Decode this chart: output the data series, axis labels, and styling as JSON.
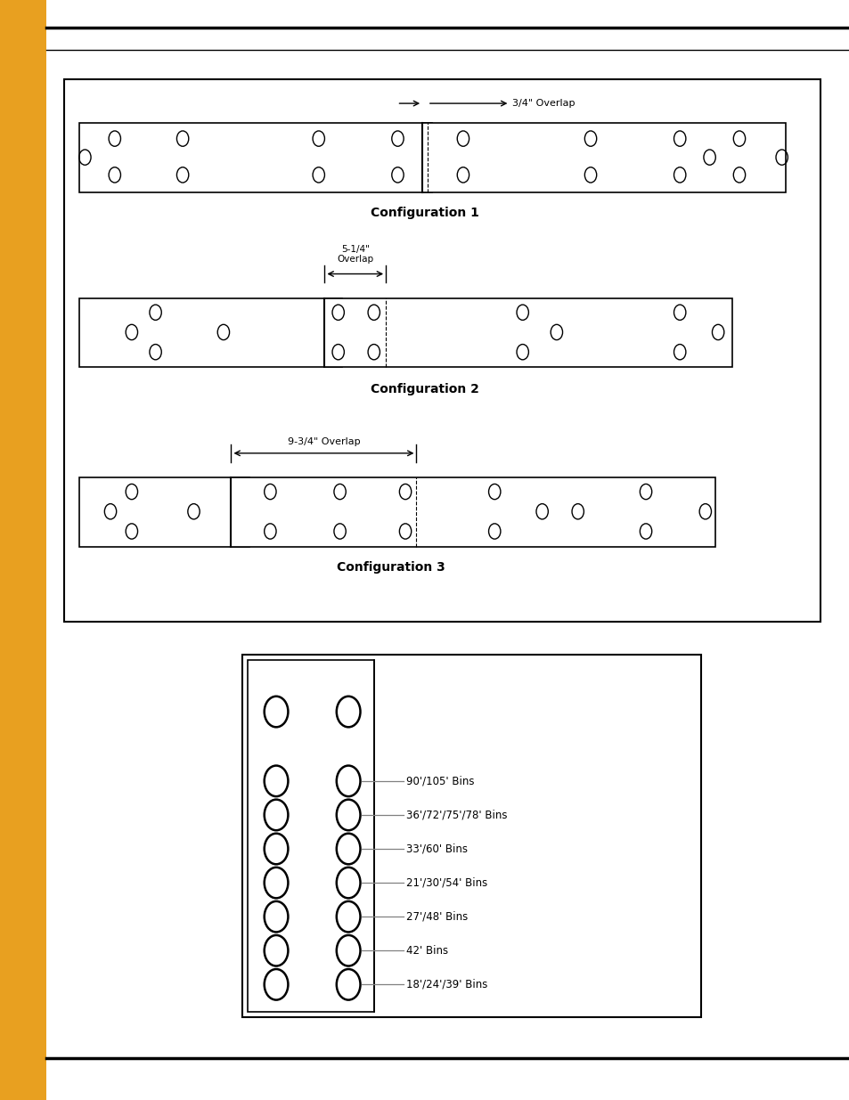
{
  "bg_color": "#ffffff",
  "sidebar_color": "#E8A020",
  "legend_entries": [
    "90'/105' Bins",
    "36'/72'/75'/78' Bins",
    "33'/60' Bins",
    "21'/30'/54' Bins",
    "27'/48' Bins",
    "42' Bins",
    "18'/24'/39' Bins"
  ]
}
